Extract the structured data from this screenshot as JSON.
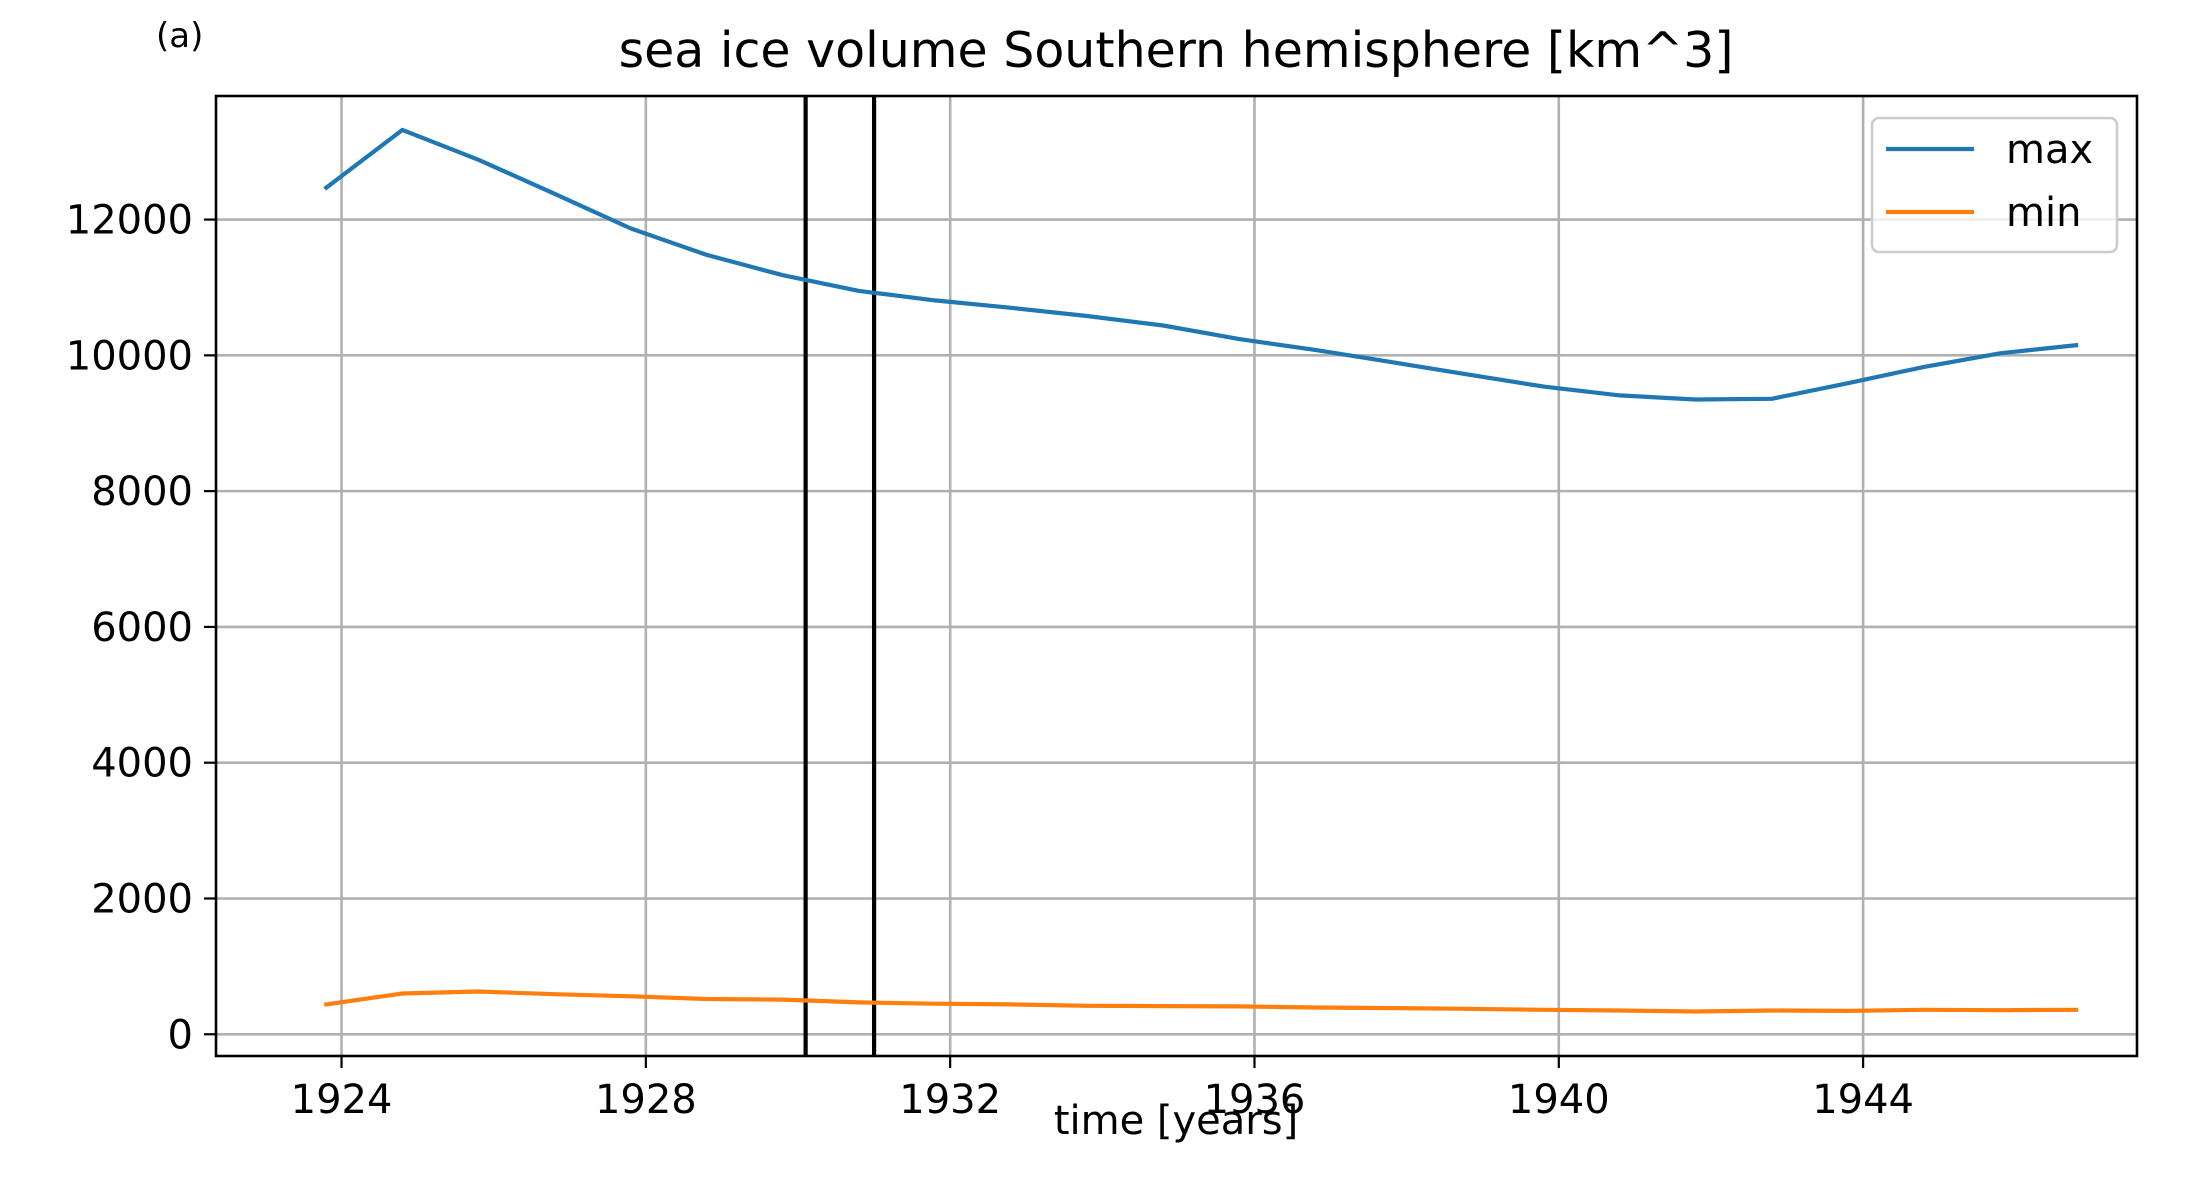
{
  "chart_data": {
    "type": "line",
    "panel_label": "(a)",
    "title": "sea ice volume Southern hemisphere [km^3]",
    "xlabel": "time [years]",
    "ylabel": "",
    "xlim": [
      1922.35,
      1947.6
    ],
    "ylim": [
      -320,
      13820
    ],
    "x_ticks": [
      1924,
      1928,
      1932,
      1936,
      1940,
      1944
    ],
    "x_tick_labels": [
      "1924",
      "1928",
      "1932",
      "1936",
      "1940",
      "1944"
    ],
    "y_ticks": [
      0,
      2000,
      4000,
      6000,
      8000,
      10000,
      12000
    ],
    "y_tick_labels": [
      "0",
      "2000",
      "4000",
      "6000",
      "8000",
      "10000",
      "12000"
    ],
    "grid": true,
    "legend_position": "top-right",
    "vertical_lines": [
      1930.1,
      1931.0
    ],
    "series": [
      {
        "name": "max",
        "color": "#1f77b4",
        "x": [
          1923.8,
          1924.8,
          1925.8,
          1926.8,
          1927.8,
          1928.8,
          1929.8,
          1930.8,
          1931.8,
          1932.8,
          1933.8,
          1934.8,
          1935.8,
          1936.8,
          1937.8,
          1938.8,
          1939.8,
          1940.8,
          1941.8,
          1942.8,
          1943.8,
          1944.8,
          1945.8,
          1946.8
        ],
        "values": [
          12470,
          13320,
          12880,
          12380,
          11870,
          11480,
          11180,
          10950,
          10810,
          10700,
          10580,
          10440,
          10240,
          10080,
          9900,
          9720,
          9540,
          9410,
          9350,
          9360,
          9590,
          9830,
          10030,
          10150
        ]
      },
      {
        "name": "min",
        "color": "#ff7f0e",
        "x": [
          1923.8,
          1924.8,
          1925.8,
          1926.8,
          1927.8,
          1928.8,
          1929.8,
          1930.8,
          1931.8,
          1932.8,
          1933.8,
          1934.8,
          1935.8,
          1936.8,
          1937.8,
          1938.8,
          1939.8,
          1940.8,
          1941.8,
          1942.8,
          1943.8,
          1944.8,
          1945.8,
          1946.8
        ],
        "values": [
          440,
          600,
          630,
          590,
          560,
          520,
          510,
          470,
          450,
          440,
          420,
          415,
          410,
          395,
          385,
          375,
          360,
          350,
          335,
          350,
          345,
          360,
          355,
          360
        ]
      }
    ]
  }
}
